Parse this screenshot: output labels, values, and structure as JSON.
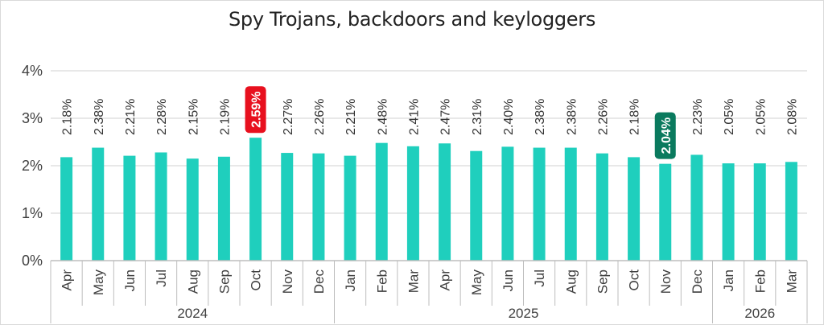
{
  "chart_data": {
    "type": "bar",
    "title": "Spy Trojans, backdoors and keyloggers",
    "ylim": [
      0,
      4
    ],
    "yticks": [
      "0%",
      "1%",
      "2%",
      "3%",
      "4%"
    ],
    "grid": true,
    "categories": [
      "Apr",
      "May",
      "Jun",
      "Jul",
      "Aug",
      "Sep",
      "Oct",
      "Nov",
      "Dec",
      "Jan",
      "Feb",
      "Mar",
      "Apr",
      "May",
      "Jun",
      "Jul",
      "Aug",
      "Sep",
      "Oct",
      "Nov",
      "Dec",
      "Jan",
      "Feb",
      "Mar"
    ],
    "values": [
      2.18,
      2.38,
      2.21,
      2.28,
      2.15,
      2.19,
      2.59,
      2.27,
      2.26,
      2.21,
      2.48,
      2.41,
      2.47,
      2.31,
      2.4,
      2.38,
      2.38,
      2.26,
      2.18,
      2.04,
      2.23,
      2.05,
      2.05,
      2.08
    ],
    "labels": [
      "2.18%",
      "2.38%",
      "2.21%",
      "2.28%",
      "2.15%",
      "2.19%",
      "2.59%",
      "2.27%",
      "2.26%",
      "2.21%",
      "2.48%",
      "2.41%",
      "2.47%",
      "2.31%",
      "2.40%",
      "2.38%",
      "2.38%",
      "2.26%",
      "2.18%",
      "2.04%",
      "2.23%",
      "2.05%",
      "2.05%",
      "2.08%"
    ],
    "year_groups": [
      {
        "label": "2024",
        "start": 0,
        "end": 8
      },
      {
        "label": "2025",
        "start": 9,
        "end": 20
      },
      {
        "label": "2026",
        "start": 21,
        "end": 23
      }
    ],
    "highlights": [
      {
        "index": 6,
        "kind": "max",
        "color": "#e8101e"
      },
      {
        "index": 19,
        "kind": "min",
        "color": "#0a7a5e"
      }
    ],
    "colors": {
      "bar": "#1fcfbd",
      "grid": "#d0d0d0",
      "axis": "#bdbdbd"
    }
  }
}
